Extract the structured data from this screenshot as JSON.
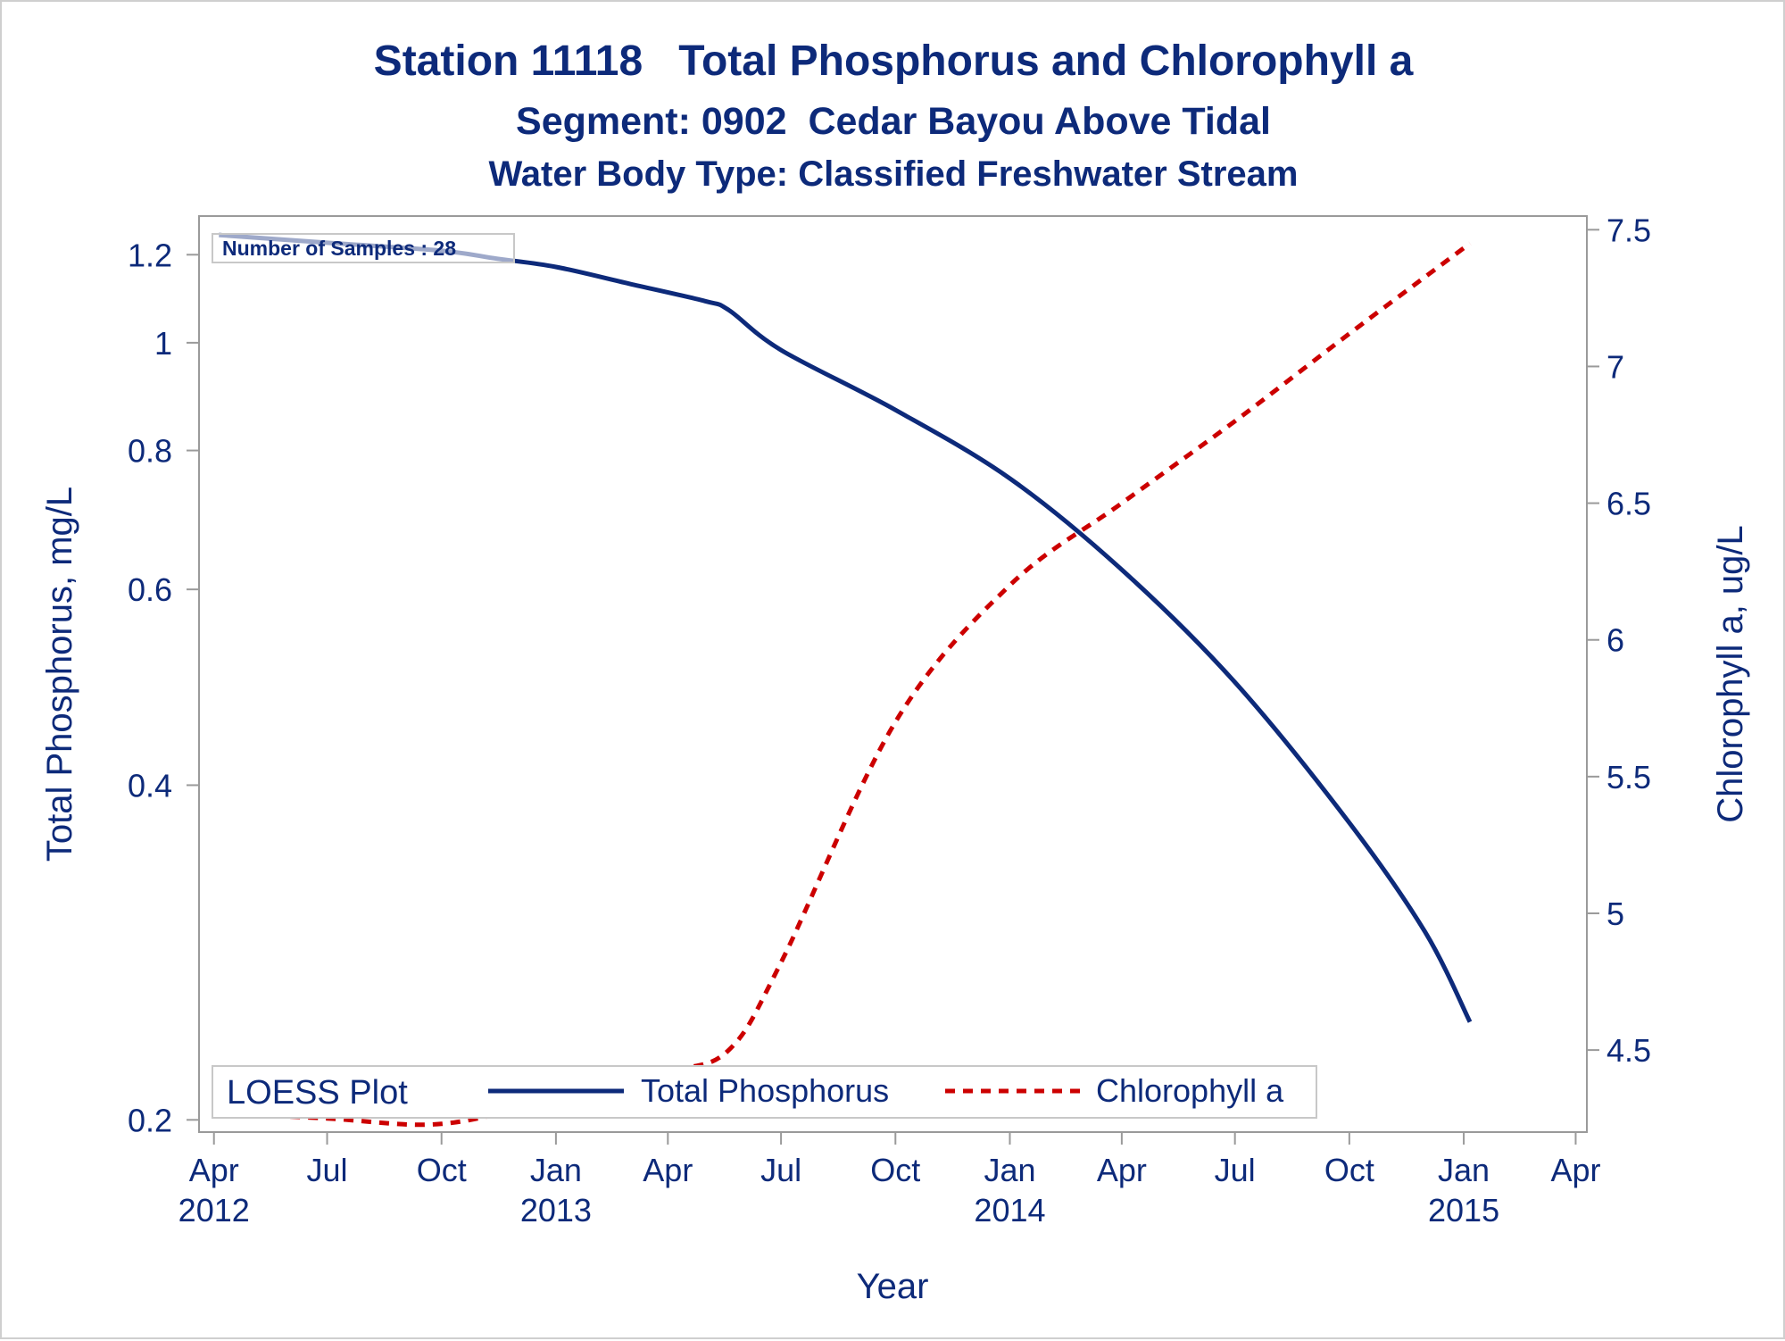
{
  "titles": {
    "line1": "Station 11118   Total Phosphorus and Chlorophyll a",
    "line2": "Segment: 0902  Cedar Bayou Above Tidal",
    "line3": "Water Body Type: Classified Freshwater Stream"
  },
  "inset": {
    "samples_text": "Number of Samples : 28"
  },
  "legend": {
    "title": "LOESS Plot",
    "items": [
      {
        "label": "Total Phosphorus",
        "color": "#0d2a7a",
        "style": "solid"
      },
      {
        "label": "Chlorophyll a",
        "color": "#cc0000",
        "style": "dashed"
      }
    ]
  },
  "colors": {
    "text": "#0d2a7a",
    "phosphorus": "#0d2a7a",
    "chlorophyll": "#cc0000",
    "axis": "#9a9a9a"
  },
  "chart_data": {
    "type": "line",
    "title": "Station 11118   Total Phosphorus and Chlorophyll a",
    "xlabel": "Year",
    "ylabel": "Total Phosphorus, mg/L",
    "y2label": "Chlorophyll a, ug/L",
    "x_ticks": [
      {
        "value": "2012-04-01",
        "label": "Apr",
        "year": "2012"
      },
      {
        "value": "2012-07-01",
        "label": "Jul",
        "year": ""
      },
      {
        "value": "2012-10-01",
        "label": "Oct",
        "year": ""
      },
      {
        "value": "2013-01-01",
        "label": "Jan",
        "year": "2013"
      },
      {
        "value": "2013-04-01",
        "label": "Apr",
        "year": ""
      },
      {
        "value": "2013-07-01",
        "label": "Jul",
        "year": ""
      },
      {
        "value": "2013-10-01",
        "label": "Oct",
        "year": ""
      },
      {
        "value": "2014-01-01",
        "label": "Jan",
        "year": "2014"
      },
      {
        "value": "2014-04-01",
        "label": "Apr",
        "year": ""
      },
      {
        "value": "2014-07-01",
        "label": "Jul",
        "year": ""
      },
      {
        "value": "2014-10-01",
        "label": "Oct",
        "year": ""
      },
      {
        "value": "2015-01-01",
        "label": "Jan",
        "year": "2015"
      },
      {
        "value": "2015-04-01",
        "label": "Apr",
        "year": ""
      }
    ],
    "xlim": [
      "2012-03-20",
      "2015-04-10"
    ],
    "y_scale": "log",
    "ylim": [
      0.195,
      1.3
    ],
    "y_ticks": [
      0.2,
      0.4,
      0.6,
      0.8,
      1,
      1.2
    ],
    "y_tick_labels": [
      "0.2",
      "0.4",
      "0.6",
      "0.8",
      "1",
      "1.2"
    ],
    "y2lim": [
      4.2,
      7.55
    ],
    "y2_ticks": [
      4.5,
      5,
      5.5,
      6,
      6.5,
      7,
      7.5
    ],
    "y2_tick_labels": [
      "4.5",
      "5",
      "5.5",
      "6",
      "6.5",
      "7",
      "7.5"
    ],
    "grid": false,
    "legend_position": "bottom",
    "series": [
      {
        "name": "Total Phosphorus",
        "axis": "left",
        "x": [
          "2012-04-05",
          "2012-07-01",
          "2012-10-01",
          "2012-11-15",
          "2013-01-01",
          "2013-03-01",
          "2013-05-01",
          "2013-05-20",
          "2013-07-01",
          "2013-10-01",
          "2014-01-01",
          "2014-04-01",
          "2014-07-01",
          "2014-10-01",
          "2014-12-01",
          "2015-01-06"
        ],
        "values": [
          1.25,
          1.23,
          1.21,
          1.19,
          1.17,
          1.13,
          1.09,
          1.07,
          0.985,
          0.87,
          0.755,
          0.625,
          0.495,
          0.37,
          0.295,
          0.245
        ]
      },
      {
        "name": "Chlorophyll a",
        "axis": "right",
        "x": [
          "2012-04-05",
          "2012-07-01",
          "2012-10-01",
          "2013-01-01",
          "2013-04-01",
          "2013-05-20",
          "2013-07-01",
          "2013-10-01",
          "2014-01-01",
          "2014-04-01",
          "2014-07-01",
          "2014-10-01",
          "2015-01-06"
        ],
        "values": [
          4.27,
          4.25,
          4.23,
          4.32,
          4.42,
          4.5,
          4.82,
          5.7,
          6.2,
          6.5,
          6.8,
          7.12,
          7.45
        ]
      }
    ]
  }
}
